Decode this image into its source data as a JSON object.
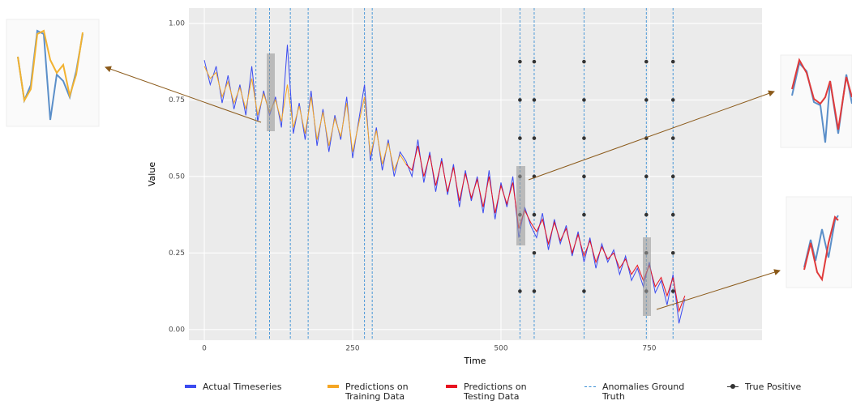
{
  "chart_data": {
    "type": "line",
    "xlabel": "Time",
    "ylabel": "Value",
    "xlim": [
      -26,
      940
    ],
    "ylim": [
      -0.035,
      1.05
    ],
    "xticks": [
      0,
      250,
      500,
      750
    ],
    "yticks": [
      {
        "value": 0,
        "label": "0.00"
      },
      {
        "value": 0.25,
        "label": "0.25"
      },
      {
        "value": 0.5,
        "label": "0.50"
      },
      {
        "value": 0.75,
        "label": "0.75"
      },
      {
        "value": 1,
        "label": "1.00"
      }
    ],
    "grid": true,
    "series": [
      {
        "name": "Actual Timeseries",
        "color": "#3b4bf0",
        "mark": "line",
        "x": [
          0,
          10,
          20,
          30,
          40,
          50,
          60,
          70,
          80,
          90,
          100,
          110,
          120,
          130,
          140,
          150,
          160,
          170,
          180,
          190,
          200,
          210,
          220,
          230,
          240,
          250,
          260,
          270,
          280,
          290,
          300,
          310,
          320,
          330,
          340,
          350,
          360,
          370,
          380,
          390,
          400,
          410,
          420,
          430,
          440,
          450,
          460,
          470,
          480,
          490,
          500,
          510,
          520,
          530,
          540,
          550,
          560,
          570,
          580,
          590,
          600,
          610,
          620,
          630,
          640,
          650,
          660,
          670,
          680,
          690,
          700,
          710,
          720,
          730,
          740,
          750,
          760,
          770,
          780,
          790,
          800,
          810
        ],
        "values": [
          0.88,
          0.8,
          0.86,
          0.74,
          0.83,
          0.72,
          0.8,
          0.7,
          0.86,
          0.68,
          0.78,
          0.7,
          0.76,
          0.66,
          0.93,
          0.64,
          0.74,
          0.62,
          0.78,
          0.6,
          0.72,
          0.58,
          0.7,
          0.62,
          0.76,
          0.56,
          0.68,
          0.8,
          0.55,
          0.66,
          0.52,
          0.62,
          0.5,
          0.58,
          0.55,
          0.5,
          0.62,
          0.48,
          0.58,
          0.45,
          0.56,
          0.44,
          0.54,
          0.4,
          0.52,
          0.42,
          0.5,
          0.38,
          0.52,
          0.36,
          0.48,
          0.4,
          0.5,
          0.3,
          0.4,
          0.34,
          0.3,
          0.38,
          0.26,
          0.36,
          0.28,
          0.34,
          0.24,
          0.32,
          0.22,
          0.3,
          0.2,
          0.28,
          0.22,
          0.26,
          0.18,
          0.24,
          0.16,
          0.2,
          0.14,
          0.22,
          0.12,
          0.16,
          0.08,
          0.18,
          0.02,
          0.1
        ]
      },
      {
        "name": "Predictions on Training Data",
        "color": "#f5a623",
        "mark": "line",
        "x": [
          0,
          10,
          20,
          30,
          40,
          50,
          60,
          70,
          80,
          90,
          100,
          110,
          120,
          130,
          140,
          150,
          160,
          170,
          180,
          190,
          200,
          210,
          220,
          230,
          240,
          250,
          260,
          270,
          280,
          290,
          300,
          310,
          320,
          330,
          340
        ],
        "values": [
          0.86,
          0.82,
          0.84,
          0.76,
          0.81,
          0.74,
          0.79,
          0.72,
          0.82,
          0.7,
          0.77,
          0.71,
          0.75,
          0.68,
          0.8,
          0.66,
          0.73,
          0.64,
          0.76,
          0.62,
          0.71,
          0.6,
          0.69,
          0.63,
          0.74,
          0.58,
          0.67,
          0.76,
          0.57,
          0.65,
          0.54,
          0.61,
          0.52,
          0.57,
          0.54
        ]
      },
      {
        "name": "Predictions on Testing Data",
        "color": "#e8121f",
        "mark": "line",
        "x": [
          340,
          350,
          360,
          370,
          380,
          390,
          400,
          410,
          420,
          430,
          440,
          450,
          460,
          470,
          480,
          490,
          500,
          510,
          520,
          530,
          540,
          550,
          560,
          570,
          580,
          590,
          600,
          610,
          620,
          630,
          640,
          650,
          660,
          670,
          680,
          690,
          700,
          710,
          720,
          730,
          740,
          750,
          760,
          770,
          780,
          790,
          800,
          810
        ],
        "values": [
          0.54,
          0.52,
          0.6,
          0.5,
          0.57,
          0.47,
          0.55,
          0.45,
          0.53,
          0.42,
          0.51,
          0.43,
          0.49,
          0.4,
          0.5,
          0.38,
          0.47,
          0.41,
          0.48,
          0.33,
          0.39,
          0.35,
          0.32,
          0.36,
          0.28,
          0.35,
          0.29,
          0.33,
          0.25,
          0.31,
          0.24,
          0.29,
          0.22,
          0.27,
          0.23,
          0.25,
          0.2,
          0.23,
          0.18,
          0.21,
          0.16,
          0.21,
          0.14,
          0.17,
          0.11,
          0.17,
          0.06,
          0.11
        ]
      },
      {
        "name": "Anomalies Ground Truth",
        "color": "#3a8fd6",
        "mark": "vline",
        "x": [
          87,
          110,
          145,
          175,
          270,
          283,
          532,
          556,
          640,
          745,
          790
        ]
      },
      {
        "name": "True Positive",
        "color": "#333333",
        "mark": "point",
        "x": [
          532,
          532,
          532,
          532,
          532,
          532,
          556,
          556,
          556,
          556,
          556,
          556,
          556,
          640,
          640,
          640,
          640,
          640,
          640,
          745,
          745,
          745,
          745,
          745,
          745,
          745,
          790,
          790,
          790,
          790,
          790,
          790,
          790
        ],
        "values": [
          0.875,
          0.75,
          0.625,
          0.5,
          0.375,
          0.125,
          0.875,
          0.75,
          0.625,
          0.5,
          0.375,
          0.25,
          0.125,
          0.875,
          0.75,
          0.625,
          0.5,
          0.375,
          0.125,
          0.875,
          0.75,
          0.625,
          0.5,
          0.375,
          0.25,
          0.125,
          0.875,
          0.75,
          0.625,
          0.5,
          0.375,
          0.25,
          0.125
        ]
      }
    ]
  }
}
